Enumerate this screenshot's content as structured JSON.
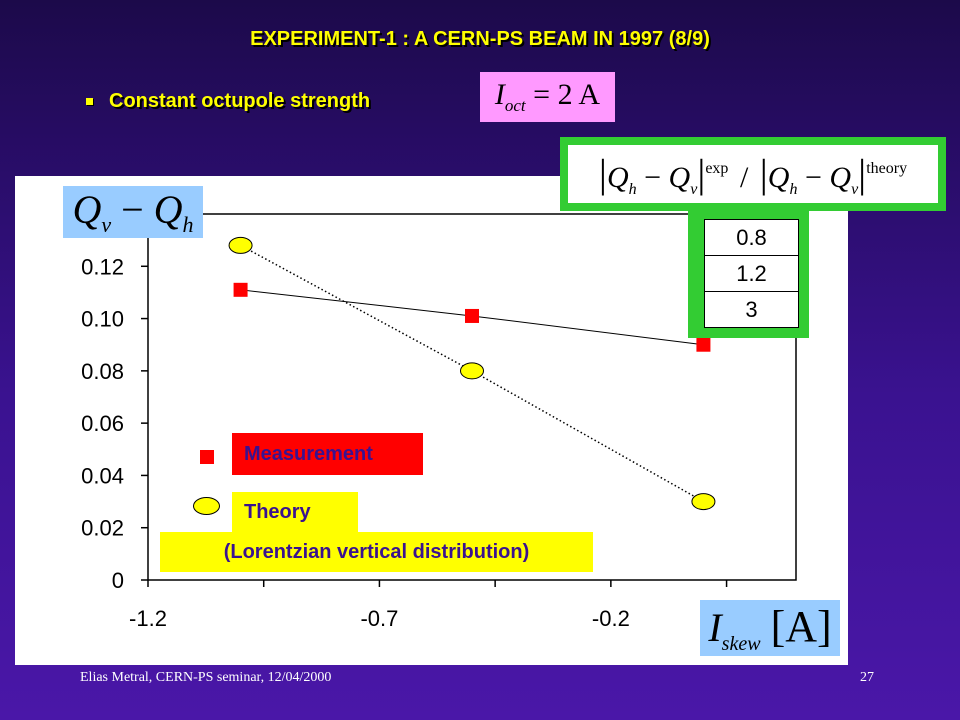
{
  "slide": {
    "title": "EXPERIMENT-1 : A CERN-PS BEAM IN 1997 (8/9)",
    "bullet": "Constant octupole strength",
    "footer_left": "Elias Metral, CERN-PS seminar, 12/04/2000",
    "page_number": "27"
  },
  "formulas": {
    "ioct": {
      "symbol": "I",
      "sub": "oct",
      "value": "= 2 A"
    },
    "ylabel": {
      "a": "Q",
      "a_sub": "v",
      "op": "−",
      "b": "Q",
      "b_sub": "h"
    },
    "xlabel": {
      "symbol": "I",
      "sub": "skew",
      "unit": "[A]"
    },
    "ratio": {
      "num_a": "Q",
      "num_a_sub": "h",
      "minus1": "−",
      "num_b": "Q",
      "num_b_sub": "v",
      "sup1": "exp",
      "slash": "/",
      "den_a": "Q",
      "den_a_sub": "h",
      "minus2": "−",
      "den_b": "Q",
      "den_b_sub": "v",
      "sup2": "theory"
    }
  },
  "ratio_values": [
    "0.8",
    "1.2",
    "3"
  ],
  "legend": {
    "measurement": "Measurement",
    "theory": "Theory",
    "theory_note": "(Lorentzian vertical distribution)"
  },
  "colors": {
    "measurement": "#ff0000",
    "theory": "#ffff00",
    "title": "#ffff00",
    "ratio_frame": "#33cc33",
    "label_box": "#99ccff",
    "formula_box": "#ff99ff"
  },
  "chart_data": {
    "type": "scatter",
    "xlim": [
      -1.2,
      0.2
    ],
    "ylim": [
      0,
      0.14
    ],
    "xticks": [
      -1.2,
      -0.7,
      -0.2
    ],
    "xtick_labels": [
      "-1.2",
      "-0.7",
      "-0.2"
    ],
    "yticks": [
      0,
      0.02,
      0.04,
      0.06,
      0.08,
      0.1,
      0.12
    ],
    "ytick_labels": [
      "0",
      "0.02",
      "0.04",
      "0.06",
      "0.08",
      "0.10",
      "0.12"
    ],
    "grid": false,
    "legend_position": "bottom-left",
    "series": [
      {
        "name": "Measurement",
        "marker": "square",
        "line": "solid",
        "color": "#ff0000",
        "x": [
          -1.0,
          -0.5,
          0.0
        ],
        "y": [
          0.111,
          0.101,
          0.09
        ]
      },
      {
        "name": "Theory",
        "marker": "ellipse",
        "line": "dotted",
        "color": "#ffff00",
        "x": [
          -1.0,
          -0.5,
          0.0
        ],
        "y": [
          0.128,
          0.08,
          0.03
        ]
      }
    ]
  }
}
